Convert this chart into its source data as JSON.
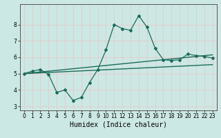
{
  "xlabel": "Humidex (Indice chaleur)",
  "bg_color": "#cce8e4",
  "line_color": "#1a6b5a",
  "grid_color": "#e8c8c8",
  "x_values": [
    0,
    1,
    2,
    3,
    4,
    5,
    6,
    7,
    8,
    9,
    10,
    11,
    12,
    13,
    14,
    15,
    16,
    17,
    18,
    19,
    20,
    21,
    22,
    23
  ],
  "y_humidex": [
    5.0,
    5.15,
    5.25,
    4.95,
    3.85,
    4.0,
    3.35,
    3.55,
    4.45,
    5.25,
    6.45,
    8.0,
    7.75,
    7.65,
    8.55,
    7.85,
    6.55,
    5.85,
    5.8,
    5.85,
    6.2,
    6.1,
    6.05,
    5.95
  ],
  "trend1_start_x": 0,
  "trend1_start_y": 5.0,
  "trend1_end_x": 23,
  "trend1_end_y": 6.15,
  "trend2_start_x": 0,
  "trend2_start_y": 5.0,
  "trend2_end_x": 23,
  "trend2_end_y": 5.55,
  "ylim": [
    2.75,
    9.25
  ],
  "xlim": [
    -0.5,
    23.5
  ],
  "yticks": [
    3,
    4,
    5,
    6,
    7,
    8
  ],
  "xticks": [
    0,
    1,
    2,
    3,
    4,
    5,
    6,
    7,
    8,
    9,
    10,
    11,
    12,
    13,
    14,
    15,
    16,
    17,
    18,
    19,
    20,
    21,
    22,
    23
  ],
  "tick_fontsize": 5.5,
  "xlabel_fontsize": 7
}
